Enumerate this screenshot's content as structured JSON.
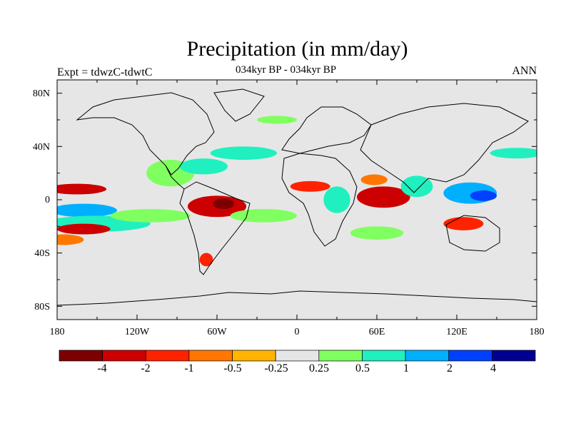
{
  "title": "Precipitation (in mm/day)",
  "subtitle_left": "Expt = tdwzC-tdwtC",
  "subtitle_center": "034kyr BP - 034kyr BP",
  "subtitle_right": "ANN",
  "lat_labels": [
    "80N",
    "40N",
    "0",
    "40S",
    "80S"
  ],
  "lon_labels": [
    "180",
    "120W",
    "60W",
    "0",
    "60E",
    "120E",
    "180"
  ],
  "colorbar": {
    "labels": [
      "-4",
      "-2",
      "-1",
      "-0.5",
      "-0.25",
      "0.25",
      "0.5",
      "1",
      "2",
      "4"
    ],
    "colors": [
      "#7d0000",
      "#cc0000",
      "#ff2200",
      "#ff7700",
      "#ffb400",
      "#e6e6e6",
      "#80ff60",
      "#20f0c0",
      "#00b0ff",
      "#0040ff",
      "#000090"
    ]
  },
  "map": {
    "background": "#e6e6e6",
    "anomaly_regions": [
      {
        "name": "ne-pacific-rain-belt",
        "lon": -165,
        "lat": 8,
        "rx": 22,
        "ry": 4,
        "value": -2
      },
      {
        "name": "itcz-pacific-west",
        "lon": -160,
        "lat": -8,
        "rx": 25,
        "ry": 5,
        "value": 2
      },
      {
        "name": "south-pacific-band",
        "lon": -150,
        "lat": -18,
        "rx": 40,
        "ry": 6,
        "value": 1
      },
      {
        "name": "south-pacific-dry",
        "lon": -160,
        "lat": -22,
        "rx": 20,
        "ry": 4,
        "value": -2
      },
      {
        "name": "tropical-pacific-east",
        "lon": -110,
        "lat": -12,
        "rx": 30,
        "ry": 5,
        "value": 0.5
      },
      {
        "name": "central-america-wet",
        "lon": -95,
        "lat": 20,
        "rx": 18,
        "ry": 10,
        "value": 0.5
      },
      {
        "name": "caribbean-wet",
        "lon": -70,
        "lat": 25,
        "rx": 18,
        "ry": 6,
        "value": 1
      },
      {
        "name": "atlantic-storm-track",
        "lon": -40,
        "lat": 35,
        "rx": 25,
        "ry": 5,
        "value": 1
      },
      {
        "name": "amazon-dry",
        "lon": -60,
        "lat": -5,
        "rx": 22,
        "ry": 8,
        "value": -2
      },
      {
        "name": "amazon-core-dry",
        "lon": -55,
        "lat": -3,
        "rx": 8,
        "ry": 4,
        "value": -4
      },
      {
        "name": "south-atlantic-wet",
        "lon": -25,
        "lat": -12,
        "rx": 25,
        "ry": 5,
        "value": 0.5
      },
      {
        "name": "patagonia-dry",
        "lon": -68,
        "lat": -45,
        "rx": 5,
        "ry": 5,
        "value": -1
      },
      {
        "name": "west-africa-dry",
        "lon": 10,
        "lat": 10,
        "rx": 15,
        "ry": 4,
        "value": -1
      },
      {
        "name": "east-africa-wet",
        "lon": 30,
        "lat": 0,
        "rx": 10,
        "ry": 10,
        "value": 1
      },
      {
        "name": "indian-ocean-dry",
        "lon": 65,
        "lat": 2,
        "rx": 20,
        "ry": 8,
        "value": -2
      },
      {
        "name": "arabian-sea-dry",
        "lon": 58,
        "lat": 15,
        "rx": 10,
        "ry": 4,
        "value": -0.5
      },
      {
        "name": "bay-of-bengal-wet",
        "lon": 90,
        "lat": 10,
        "rx": 12,
        "ry": 8,
        "value": 1
      },
      {
        "name": "maritime-continent-wet",
        "lon": 130,
        "lat": 5,
        "rx": 20,
        "ry": 8,
        "value": 2
      },
      {
        "name": "west-pacific-core-wet",
        "lon": 140,
        "lat": 3,
        "rx": 10,
        "ry": 4,
        "value": 4
      },
      {
        "name": "north-pacific-storm-track",
        "lon": 165,
        "lat": 35,
        "rx": 20,
        "ry": 4,
        "value": 1
      },
      {
        "name": "australia-dry",
        "lon": 125,
        "lat": -18,
        "rx": 15,
        "ry": 5,
        "value": -1
      },
      {
        "name": "south-indian-wet",
        "lon": 60,
        "lat": -25,
        "rx": 20,
        "ry": 5,
        "value": 0.5
      },
      {
        "name": "north-atlantic-wet",
        "lon": -15,
        "lat": 60,
        "rx": 15,
        "ry": 3,
        "value": 0.5
      },
      {
        "name": "south-pacific-dry-west",
        "lon": -175,
        "lat": -30,
        "rx": 15,
        "ry": 4,
        "value": -0.5
      }
    ]
  }
}
